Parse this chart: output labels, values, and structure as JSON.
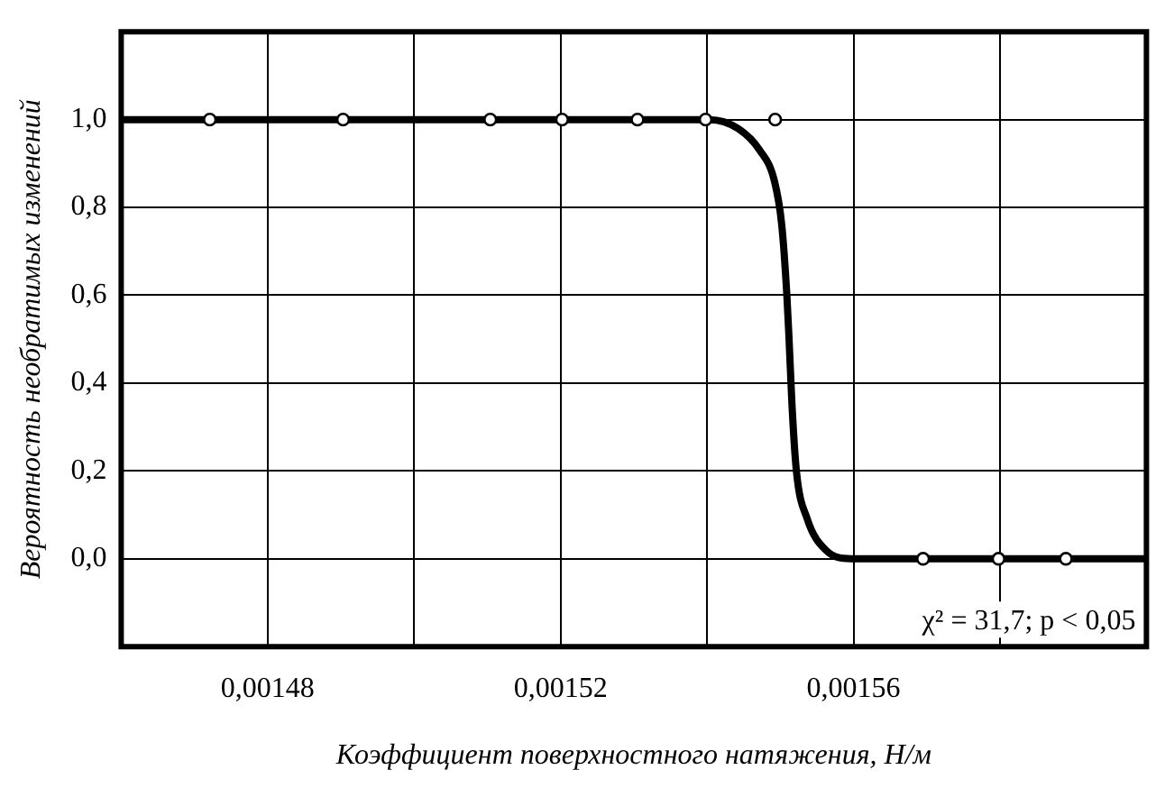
{
  "chart_data": {
    "type": "line",
    "xlabel": "Коэффициент поверхностного натяжения, Н/м",
    "ylabel": "Вероятность необратимых изменений",
    "xlim": [
      0.00146,
      0.0016
    ],
    "ylim": [
      -0.2,
      1.2
    ],
    "xticks": [
      {
        "value": 0.00148,
        "label": "0,00148"
      },
      {
        "value": 0.0015,
        "label": null
      },
      {
        "value": 0.00152,
        "label": "0,00152"
      },
      {
        "value": 0.00154,
        "label": null
      },
      {
        "value": 0.00156,
        "label": "0,00156"
      },
      {
        "value": 0.00158,
        "label": null
      }
    ],
    "yticks": [
      {
        "value": 0,
        "label": "0,0"
      },
      {
        "value": 0.2,
        "label": "0,2"
      },
      {
        "value": 0.4,
        "label": "0,4"
      },
      {
        "value": 0.6,
        "label": "0,6"
      },
      {
        "value": 0.8,
        "label": "0,8"
      },
      {
        "value": 1,
        "label": "1,0"
      }
    ],
    "grid": true,
    "legend": false,
    "annotations": [
      "χ² = 31,7; p < 0,05"
    ],
    "series": [
      {
        "color": "#000000",
        "marker": "none",
        "x": [
          0.00146,
          0.0015403,
          0.0015442,
          0.0015472,
          0.0015492,
          0.0015502,
          0.0015509,
          0.0015512,
          0.0015516,
          0.0015522,
          0.0015537,
          0.0015562,
          0.0015597,
          0.0016
        ],
        "values": [
          1,
          1,
          0.98,
          0.93,
          0.86,
          0.76,
          0.6,
          0.5,
          0.35,
          0.2,
          0.09,
          0.02,
          0,
          0
        ]
      },
      {
        "type": "scatter",
        "color": "#000000",
        "marker": "circle",
        "x": [
          0.0014721,
          0.0014903,
          0.0015104,
          0.0015202,
          0.0015305,
          0.0015398,
          0.0015493,
          0.0015695,
          0.0015798,
          0.001589
        ],
        "values": [
          1,
          1,
          1,
          1,
          1,
          1,
          1,
          0,
          0,
          0
        ]
      }
    ]
  }
}
